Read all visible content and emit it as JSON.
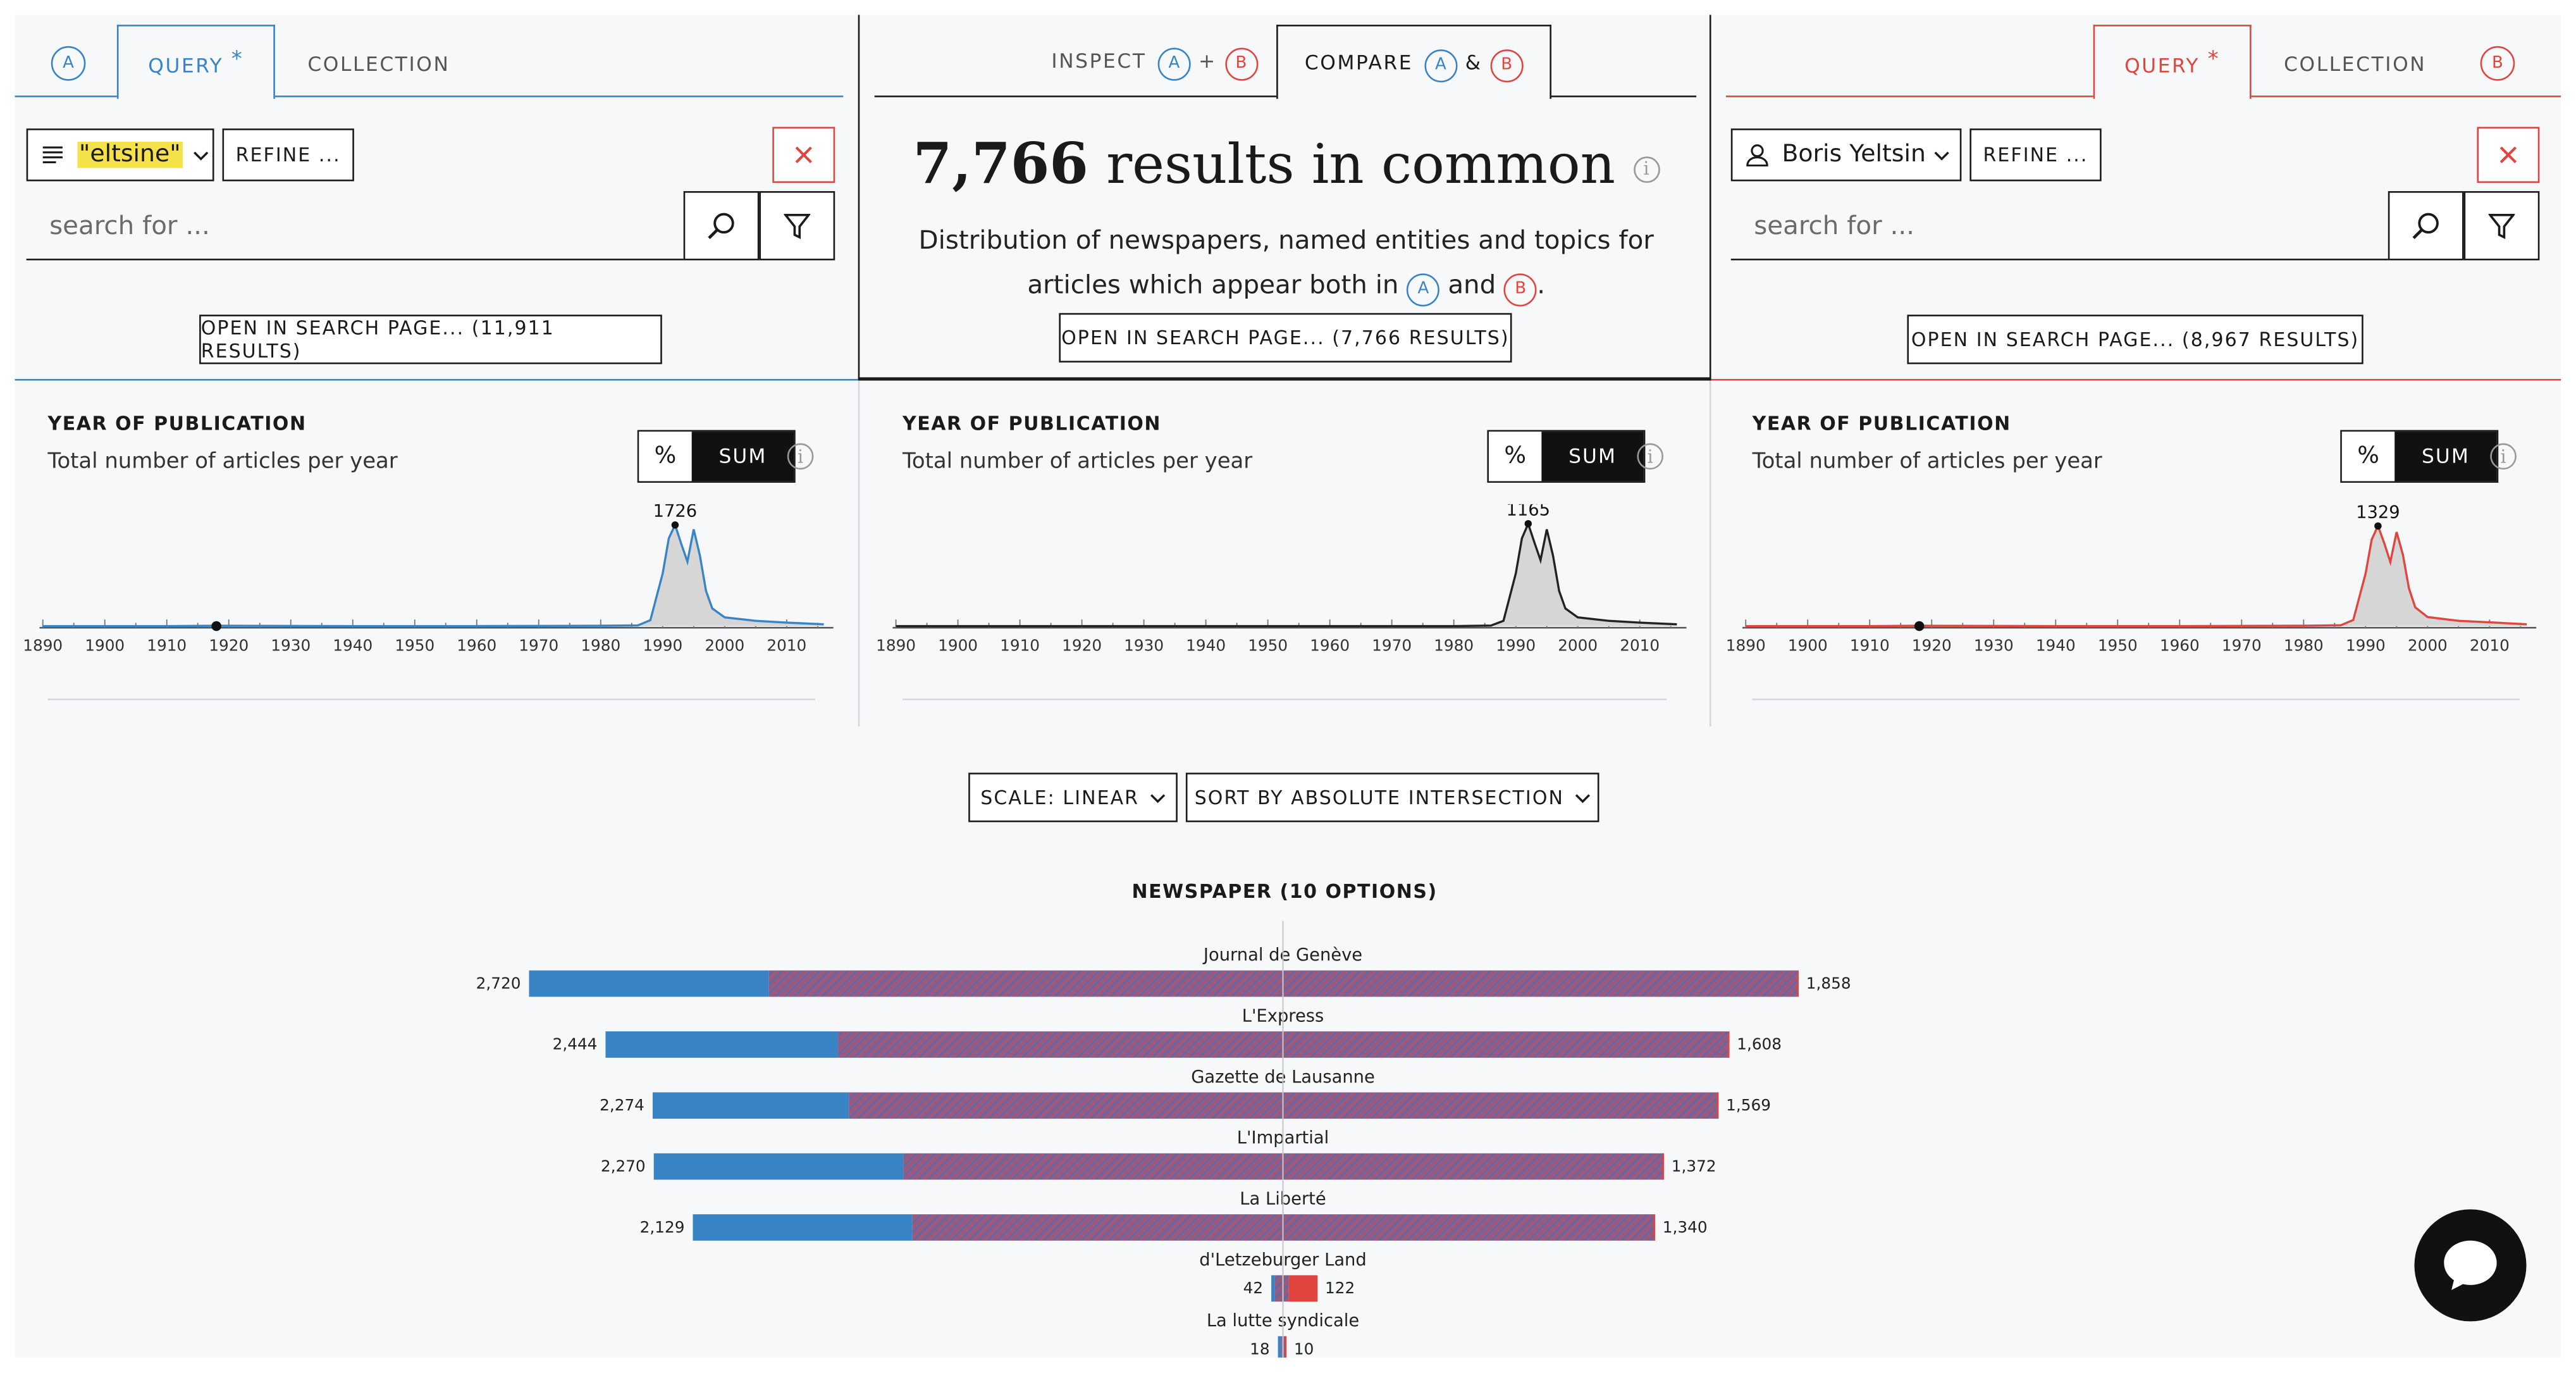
{
  "left_panel": {
    "badge": "A",
    "tabs": [
      {
        "label": "QUERY",
        "star": "*",
        "active": true
      },
      {
        "label": "COLLECTION",
        "active": false
      }
    ],
    "filter_chip": "\"eltsine\"",
    "refine_label": "REFINE ...",
    "search_placeholder": "search for ...",
    "open_search_label": "OPEN IN SEARCH PAGE... (11,911 RESULTS)",
    "year_title": "YEAR OF PUBLICATION",
    "year_subtitle": "Total number of articles per year",
    "peak_label": "1726"
  },
  "middle_panel": {
    "inspect_label": "INSPECT",
    "compare_label": "COMPARE",
    "plus": "+",
    "amp": "&",
    "badge_a": "A",
    "badge_b": "B",
    "results_count": "7,766",
    "results_text": "results in common",
    "description_line1": "Distribution of newspapers, named entities and topics for",
    "description_line2_pre": "articles which appear both in",
    "description_and": "and",
    "description_end": ".",
    "open_search_label": "OPEN IN SEARCH PAGE... (7,766 RESULTS)",
    "year_title": "YEAR OF PUBLICATION",
    "year_subtitle": "Total number of articles per year",
    "peak_label": "1165"
  },
  "right_panel": {
    "badge": "B",
    "tabs": [
      {
        "label": "QUERY",
        "star": "*",
        "active": true
      },
      {
        "label": "COLLECTION",
        "active": false
      }
    ],
    "filter_chip": "Boris Yeltsin",
    "refine_label": "REFINE ...",
    "search_placeholder": "search for ...",
    "open_search_label": "OPEN IN SEARCH PAGE... (8,967 RESULTS)",
    "year_title": "YEAR OF PUBLICATION",
    "year_subtitle": "Total number of articles per year",
    "peak_label": "1329"
  },
  "toggle": {
    "percent": "%",
    "sum": "SUM"
  },
  "axis_years": [
    "1890",
    "1900",
    "1910",
    "1920",
    "1930",
    "1940",
    "1950",
    "1960",
    "1970",
    "1980",
    "1990",
    "2000",
    "2010"
  ],
  "scale_dropdown": "SCALE: LINEAR",
  "sort_dropdown": "SORT BY ABSOLUTE INTERSECTION",
  "newspaper_title": "NEWSPAPER (10 OPTIONS)",
  "colors": {
    "a": "#3884c5",
    "b": "#e0463f",
    "intersection": "#8e5a7e",
    "text": "#1a1a1a",
    "background": "#f6f8fa"
  },
  "icons": [
    "filter-lines-icon",
    "chevron-down-icon",
    "close-icon",
    "search-icon",
    "funnel-icon",
    "user-icon",
    "info-icon",
    "chat-bubble-icon"
  ],
  "chart_data": [
    {
      "type": "area",
      "title": "YEAR OF PUBLICATION",
      "subtitle": "Total number of articles per year",
      "series_name": "A",
      "x": [
        1890,
        1910,
        1918,
        1940,
        1960,
        1980,
        1986,
        1988,
        1990,
        1991,
        1992,
        1993,
        1994,
        1995,
        1996,
        1997,
        1998,
        2000,
        2005,
        2010,
        2016
      ],
      "y": [
        0,
        0,
        5,
        0,
        0,
        5,
        10,
        100,
        900,
        1500,
        1726,
        1400,
        1100,
        1650,
        1200,
        600,
        300,
        150,
        90,
        60,
        30
      ],
      "xlim": [
        1890,
        2017
      ],
      "ylim": [
        0,
        1800
      ],
      "peak_label": "1726"
    },
    {
      "type": "area",
      "title": "YEAR OF PUBLICATION",
      "subtitle": "Total number of articles per year",
      "series_name": "A & B",
      "x": [
        1890,
        1980,
        1986,
        1988,
        1990,
        1991,
        1992,
        1993,
        1994,
        1995,
        1996,
        1997,
        1998,
        2000,
        2005,
        2010,
        2016
      ],
      "y": [
        0,
        0,
        5,
        60,
        600,
        1000,
        1165,
        950,
        750,
        1100,
        800,
        400,
        200,
        100,
        60,
        40,
        20
      ],
      "xlim": [
        1890,
        2017
      ],
      "ylim": [
        0,
        1200
      ],
      "peak_label": "1165"
    },
    {
      "type": "area",
      "title": "YEAR OF PUBLICATION",
      "subtitle": "Total number of articles per year",
      "series_name": "B",
      "x": [
        1890,
        1910,
        1918,
        1940,
        1960,
        1980,
        1986,
        1988,
        1990,
        1991,
        1992,
        1993,
        1994,
        1995,
        1996,
        1997,
        1998,
        2000,
        2005,
        2010,
        2016
      ],
      "y": [
        0,
        0,
        5,
        0,
        0,
        5,
        10,
        80,
        700,
        1150,
        1329,
        1100,
        850,
        1250,
        950,
        500,
        250,
        120,
        70,
        50,
        25
      ],
      "xlim": [
        1890,
        2017
      ],
      "ylim": [
        0,
        1400
      ],
      "peak_label": "1329"
    },
    {
      "type": "bar",
      "title": "NEWSPAPER (10 OPTIONS)",
      "categories": [
        "Journal de Genève",
        "L'Express",
        "Gazette de Lausanne",
        "L'Impartial",
        "La Liberté",
        "d'Letzeburger Land",
        "La lutte syndicale"
      ],
      "series": [
        {
          "name": "A",
          "values": [
            2720,
            2444,
            2274,
            2270,
            2129,
            42,
            18
          ]
        },
        {
          "name": "B",
          "values": [
            1858,
            1608,
            1569,
            1372,
            1340,
            122,
            10
          ]
        }
      ],
      "value_labels_a": [
        "2,720",
        "2,444",
        "2,274",
        "2,270",
        "2,129",
        "42",
        "18"
      ],
      "value_labels_b": [
        "1,858",
        "1,608",
        "1,569",
        "1,372",
        "1,340",
        "122",
        "10"
      ]
    }
  ]
}
